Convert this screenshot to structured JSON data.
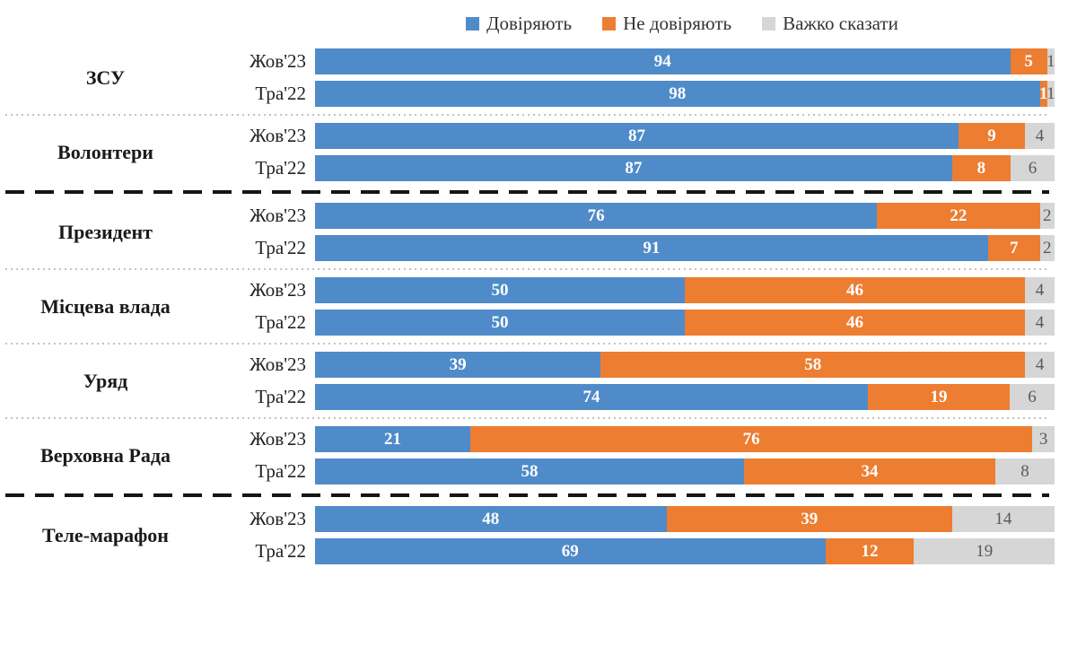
{
  "legend": [
    {
      "label": "Довіряють",
      "color": "#4F8BC9"
    },
    {
      "label": "Не довіряють",
      "color": "#ED7D31"
    },
    {
      "label": "Важко сказати",
      "color": "#D6D6D6"
    }
  ],
  "chart_data": {
    "type": "bar",
    "orientation": "horizontal",
    "stacked": true,
    "unit": "percent",
    "xlim": [
      0,
      100
    ],
    "legend_position": "top",
    "series_names": [
      "Довіряють",
      "Не довіряють",
      "Важко сказати"
    ],
    "series_keys": [
      "trust",
      "distrust",
      "hard-to-say"
    ],
    "colors": [
      "#4F8BC9",
      "#ED7D31",
      "#D6D6D6"
    ],
    "value_text_colors": [
      "#ffffff",
      "#ffffff",
      "#595959"
    ],
    "groups": [
      {
        "name": "ЗСУ",
        "separator_before": "none",
        "rows": [
          {
            "period": "Жов'23",
            "values": [
              94,
              5,
              1
            ]
          },
          {
            "period": "Тра'22",
            "values": [
              98,
              1,
              1
            ]
          }
        ]
      },
      {
        "name": "Волонтери",
        "separator_before": "dotted",
        "rows": [
          {
            "period": "Жов'23",
            "values": [
              87,
              9,
              4
            ]
          },
          {
            "period": "Тра'22",
            "values": [
              87,
              8,
              6
            ]
          }
        ]
      },
      {
        "name": "Президент",
        "separator_before": "dashed-bold",
        "rows": [
          {
            "period": "Жов'23",
            "values": [
              76,
              22,
              2
            ]
          },
          {
            "period": "Тра'22",
            "values": [
              91,
              7,
              2
            ]
          }
        ]
      },
      {
        "name": "Місцева влада",
        "separator_before": "dotted",
        "rows": [
          {
            "period": "Жов'23",
            "values": [
              50,
              46,
              4
            ]
          },
          {
            "period": "Тра'22",
            "values": [
              50,
              46,
              4
            ]
          }
        ]
      },
      {
        "name": "Уряд",
        "separator_before": "dotted",
        "rows": [
          {
            "period": "Жов'23",
            "values": [
              39,
              58,
              4
            ]
          },
          {
            "period": "Тра'22",
            "values": [
              74,
              19,
              6
            ]
          }
        ]
      },
      {
        "name": "Верховна Рада",
        "separator_before": "dotted",
        "rows": [
          {
            "period": "Жов'23",
            "values": [
              21,
              76,
              3
            ]
          },
          {
            "period": "Тра'22",
            "values": [
              58,
              34,
              8
            ]
          }
        ]
      },
      {
        "name": "Теле-марафон",
        "separator_before": "dashed-bold",
        "rows": [
          {
            "period": "Жов'23",
            "values": [
              48,
              39,
              14
            ]
          },
          {
            "period": "Тра'22",
            "values": [
              69,
              12,
              19
            ]
          }
        ]
      }
    ]
  }
}
